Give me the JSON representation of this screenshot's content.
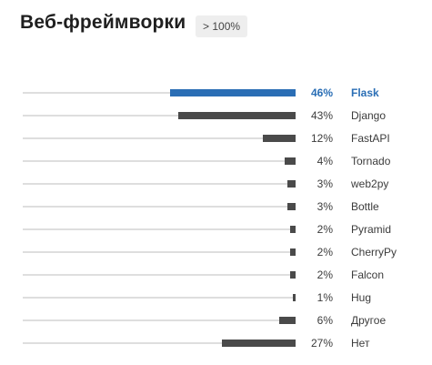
{
  "header": {
    "title": "Веб-фреймворки",
    "badge": "> 100%"
  },
  "colors": {
    "highlight": "#2a6eb5",
    "bar": "#4a4a4a",
    "text": "#3b3b3b",
    "baseline": "#bdbdbd"
  },
  "chart_data": {
    "type": "bar",
    "orientation": "horizontal",
    "title": "Веб-фреймворки",
    "categories": [
      "Flask",
      "Django",
      "FastAPI",
      "Tornado",
      "web2py",
      "Bottle",
      "Pyramid",
      "CherryPy",
      "Falcon",
      "Hug",
      "Другое",
      "Нет"
    ],
    "values": [
      46,
      43,
      12,
      4,
      3,
      3,
      2,
      2,
      2,
      1,
      6,
      27
    ],
    "value_labels": [
      "46%",
      "43%",
      "12%",
      "4%",
      "3%",
      "3%",
      "2%",
      "2%",
      "2%",
      "1%",
      "6%",
      "27%"
    ],
    "highlight_index": 0,
    "unit": "%",
    "xlim": [
      0,
      100
    ],
    "grid": false,
    "legend": "none"
  }
}
